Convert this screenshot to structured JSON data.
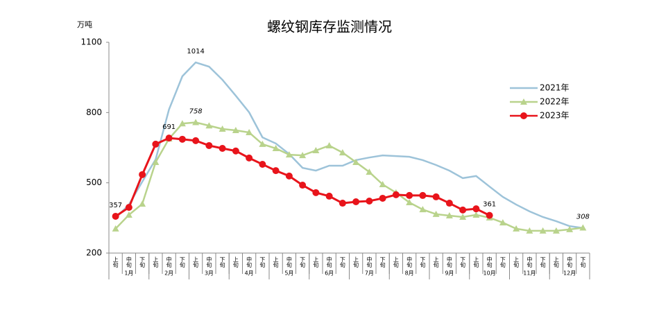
{
  "chart_data": {
    "type": "line",
    "title": "螺纹钢库存监测情况",
    "y_label": "万吨",
    "categories": [
      "上旬",
      "中旬",
      "下旬",
      "上旬",
      "中旬",
      "下旬",
      "上旬",
      "中旬",
      "下旬",
      "上旬",
      "中旬",
      "下旬",
      "上旬",
      "中旬",
      "下旬",
      "上旬",
      "中旬",
      "下旬",
      "上旬",
      "中旬",
      "下旬",
      "上旬",
      "中旬",
      "下旬",
      "上旬",
      "中旬",
      "下旬",
      "上旬",
      "中旬",
      "下旬",
      "上旬",
      "中旬",
      "下旬",
      "上旬",
      "中旬",
      "下旬"
    ],
    "months": [
      "1月",
      "2月",
      "3月",
      "4月",
      "5月",
      "6月",
      "7月",
      "8月",
      "9月",
      "10月",
      "11月",
      "12月"
    ],
    "ylim": [
      200,
      1100
    ],
    "yticks": [
      200,
      500,
      800,
      1100
    ],
    "grid": false,
    "legend": "right",
    "series": [
      {
        "name": "2021年",
        "color": "#9dc3d9",
        "marker": "none",
        "labels_at": [
          6
        ],
        "values": [
          350,
          407,
          505,
          600,
          813,
          955,
          1014,
          996,
          940,
          872,
          801,
          694,
          668,
          623,
          564,
          552,
          573,
          573,
          597,
          608,
          617,
          614,
          611,
          597,
          576,
          552,
          520,
          529,
          484,
          440,
          407,
          378,
          354,
          336,
          315,
          307
        ]
      },
      {
        "name": "2022年",
        "color": "#b9d38c",
        "marker": "triangle",
        "labels_at": [
          6,
          35
        ],
        "values": [
          304,
          363,
          410,
          588,
          688,
          753,
          758,
          744,
          730,
          724,
          715,
          665,
          647,
          620,
          617,
          638,
          659,
          629,
          588,
          546,
          493,
          458,
          416,
          386,
          366,
          360,
          354,
          363,
          351,
          330,
          304,
          295,
          295,
          295,
          301,
          308
        ]
      },
      {
        "name": "2023年",
        "color": "#e8141b",
        "marker": "circle",
        "labels_at": [
          0,
          4,
          28
        ],
        "values": [
          357,
          395,
          535,
          665,
          691,
          686,
          680,
          659,
          647,
          636,
          606,
          579,
          552,
          529,
          490,
          458,
          443,
          413,
          419,
          422,
          434,
          449,
          446,
          446,
          440,
          413,
          384,
          389,
          361,
          null,
          null,
          null,
          null,
          null,
          null,
          null
        ]
      }
    ]
  }
}
